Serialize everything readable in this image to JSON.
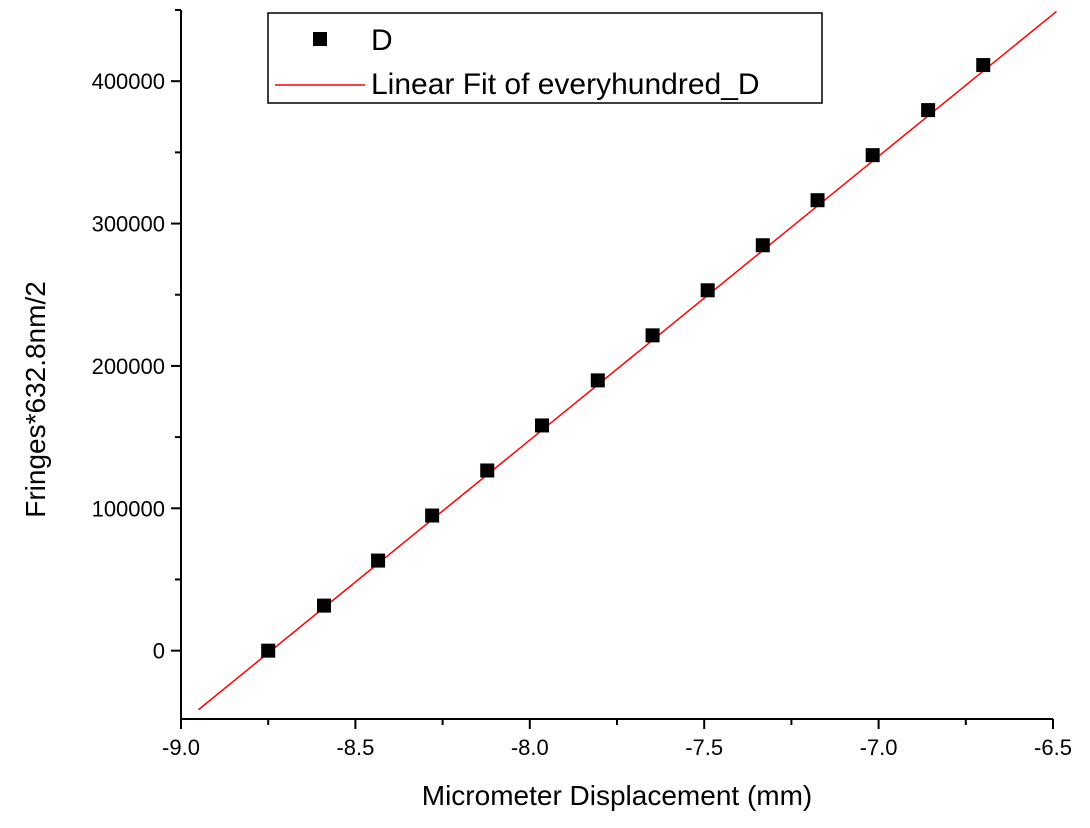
{
  "chart_data": {
    "type": "scatter",
    "title": "",
    "xlabel": "Micrometer Displacement (mm)",
    "ylabel": "Fringes*632.8nm/2",
    "xlim": [
      -9.0,
      -6.5
    ],
    "ylim": [
      -48000,
      450000
    ],
    "grid": false,
    "legend_position": "top-left",
    "x_ticks": [
      -9.0,
      -8.5,
      -8.0,
      -7.5,
      -7.0,
      -6.5
    ],
    "x_tick_labels": [
      "-9.0",
      "-8.5",
      "-8.0",
      "-7.5",
      "-7.0",
      "-6.5"
    ],
    "y_ticks": [
      0,
      100000,
      200000,
      300000,
      400000
    ],
    "y_tick_labels": [
      "0",
      "100000",
      "200000",
      "300000",
      "400000"
    ],
    "series": [
      {
        "name": "D",
        "kind": "scatter",
        "marker": "square",
        "color": "#000000",
        "x": [
          -8.75,
          -8.59,
          -8.435,
          -8.28,
          -8.122,
          -7.965,
          -7.805,
          -7.648,
          -7.49,
          -7.332,
          -7.175,
          -7.017,
          -6.858,
          -6.7
        ],
        "y": [
          0,
          31640,
          63280,
          94920,
          126560,
          158200,
          189840,
          221480,
          253120,
          284760,
          316400,
          348040,
          379680,
          411320
        ]
      },
      {
        "name": "Linear Fit of everyhundred_D",
        "kind": "line",
        "color": "#ff0000",
        "x": [
          -8.95,
          -6.49
        ],
        "y": [
          -41500,
          449000
        ]
      }
    ]
  }
}
